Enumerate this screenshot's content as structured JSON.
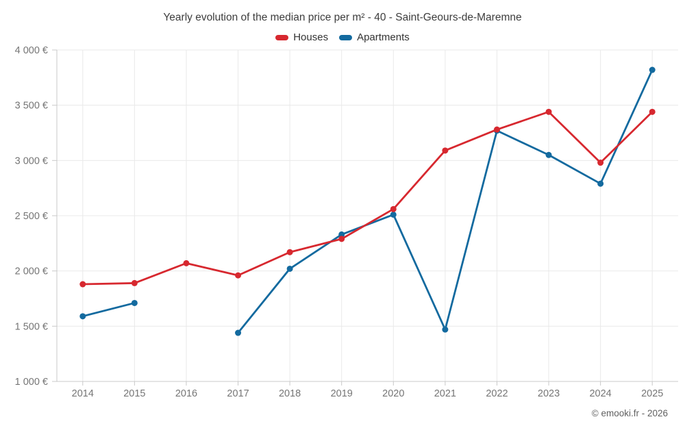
{
  "header": {
    "title": "Yearly evolution of the median price per m² - 40 - Saint-Geours-de-Maremne"
  },
  "legend": [
    {
      "label": "Houses",
      "color": "#d7282f"
    },
    {
      "label": "Apartments",
      "color": "#136a9f"
    }
  ],
  "footer": {
    "credit": "© emooki.fr - 2026"
  },
  "chart_data": {
    "type": "line",
    "title": "Yearly evolution of the median price per m² - 40 - Saint-Geours-de-Maremne",
    "xlabel": "",
    "ylabel": "",
    "categories": [
      "2014",
      "2015",
      "2016",
      "2017",
      "2018",
      "2019",
      "2020",
      "2021",
      "2022",
      "2023",
      "2024",
      "2025"
    ],
    "series": [
      {
        "name": "Houses",
        "color": "#d7282f",
        "values": [
          1880,
          1890,
          2070,
          1960,
          2170,
          2290,
          2560,
          3090,
          3280,
          3440,
          2980,
          3440
        ]
      },
      {
        "name": "Apartments",
        "color": "#136a9f",
        "values": [
          1590,
          1710,
          null,
          1440,
          2020,
          2330,
          2510,
          1470,
          3270,
          3050,
          2790,
          3820
        ]
      }
    ],
    "ylim": [
      1000,
      4000
    ],
    "ytick_step": 500,
    "ytick_labels": [
      "1 000 €",
      "1 500 €",
      "2 000 €",
      "2 500 €",
      "3 000 €",
      "3 500 €",
      "4 000 €"
    ],
    "grid": true,
    "legend_position": "top",
    "marker": "circle"
  }
}
